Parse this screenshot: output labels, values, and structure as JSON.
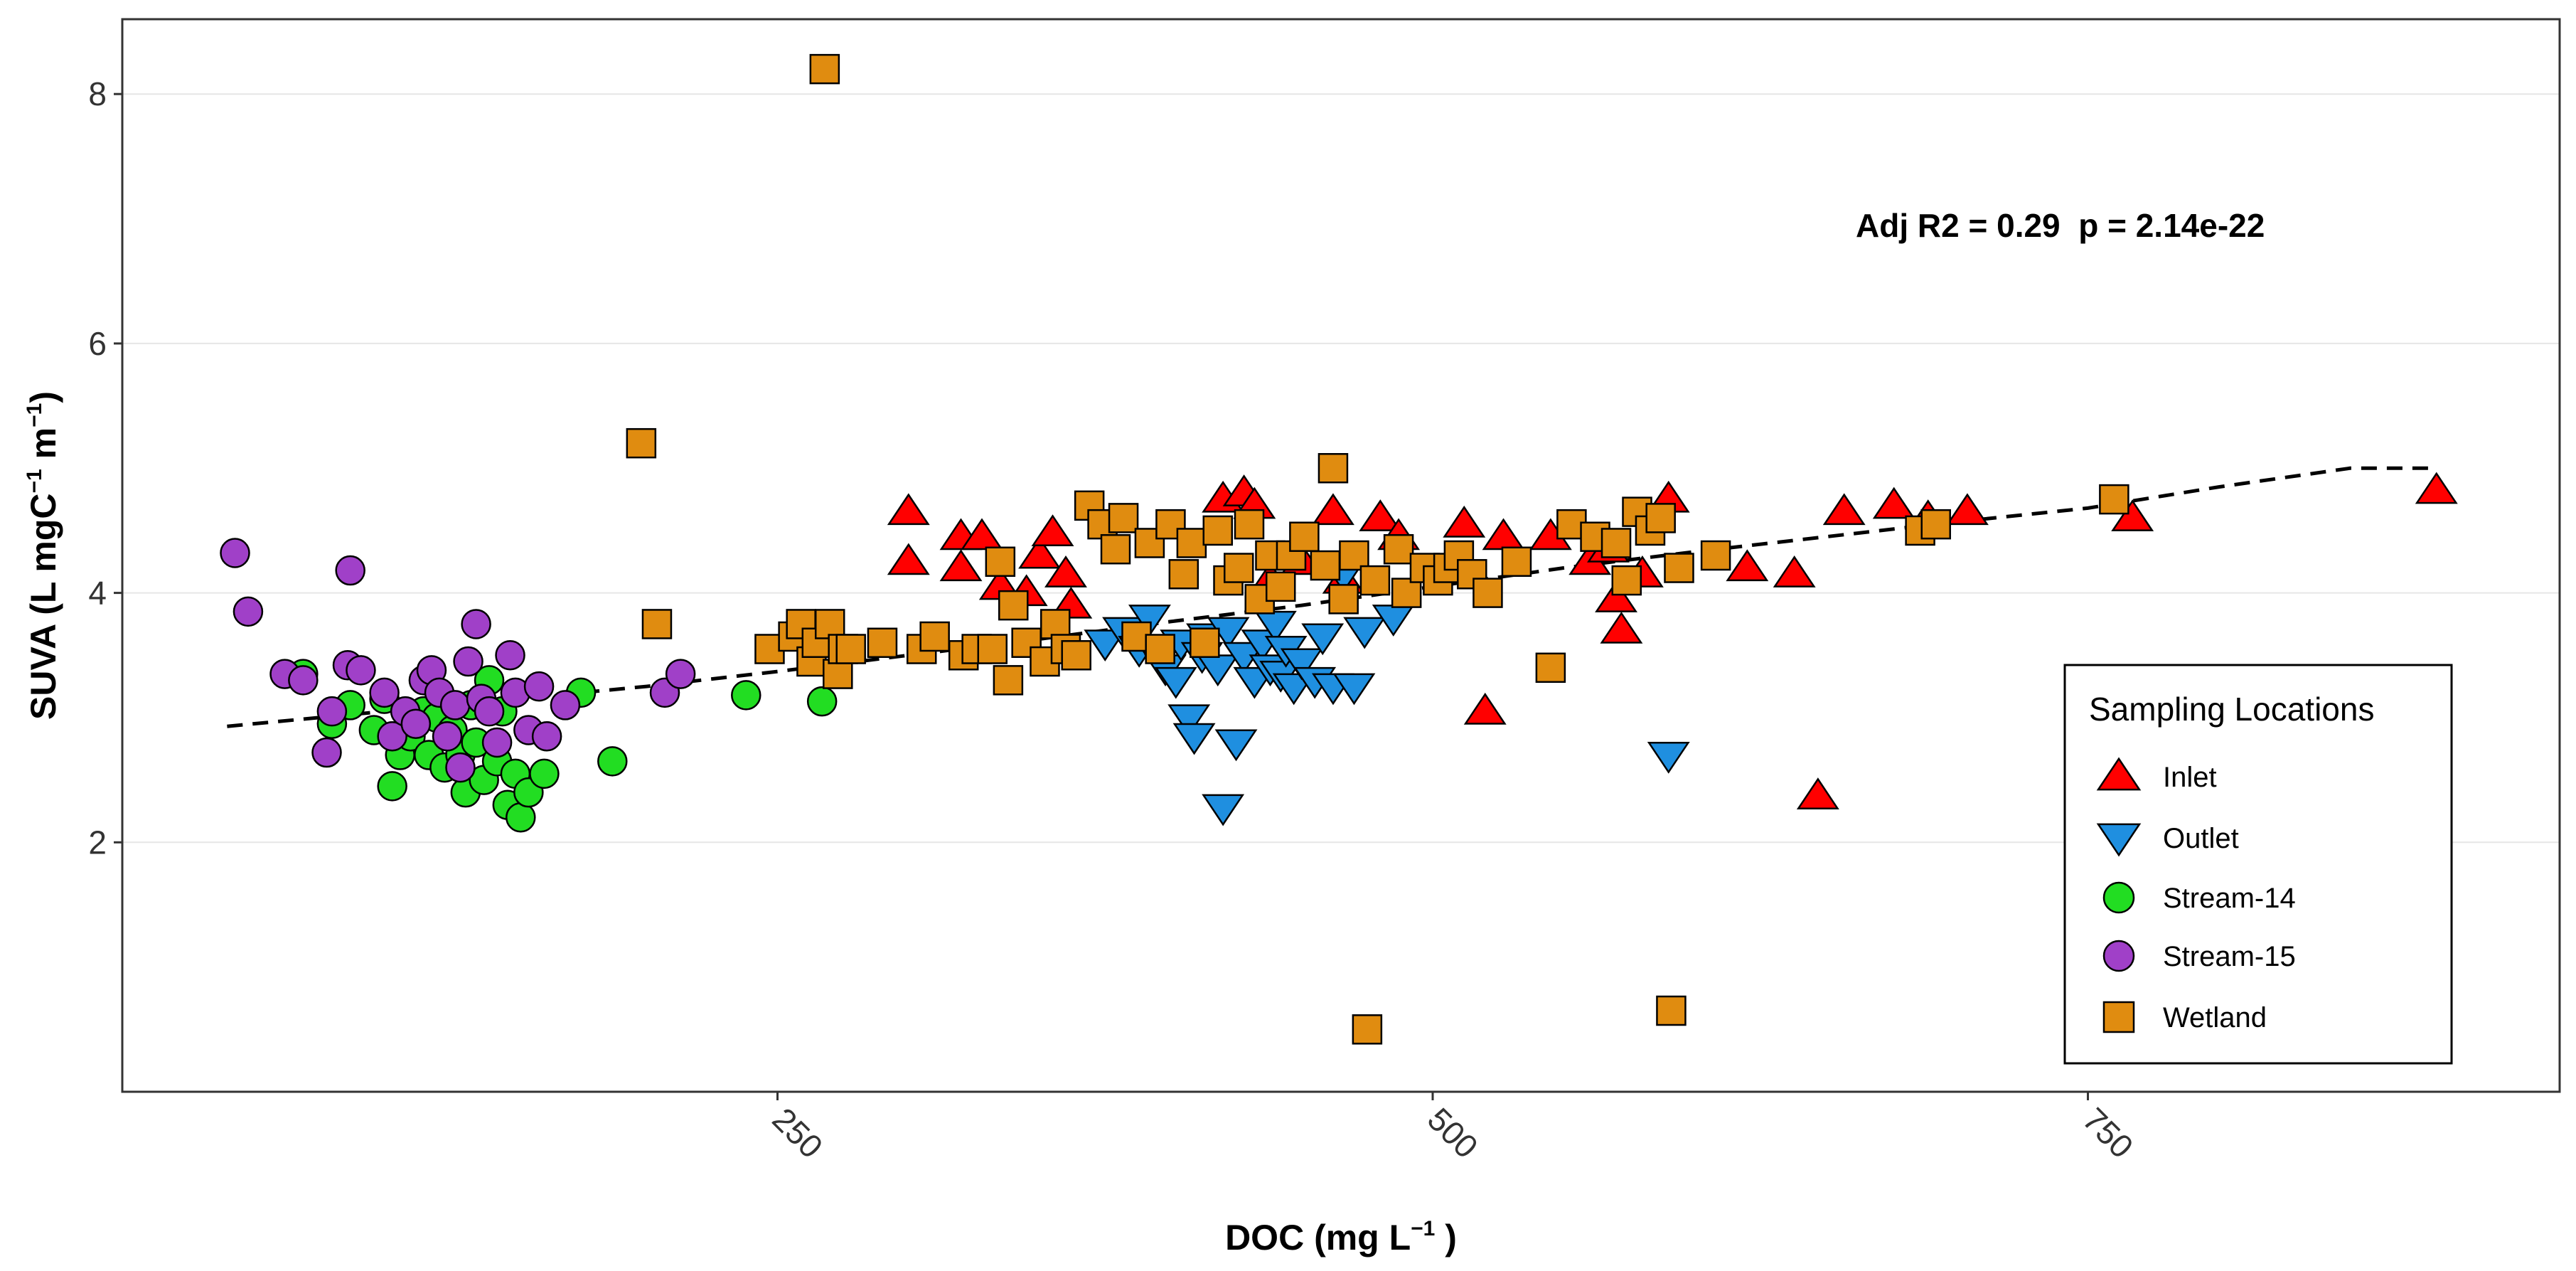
{
  "chart_data": {
    "type": "scatter",
    "xlabel": "DOC (mg L",
    "xlabel_superscript": "−1",
    "xlabel_suffix": " )",
    "ylabel": "SUVA (L mgC",
    "ylabel_sup1": "−1",
    "ylabel_mid": " m",
    "ylabel_sup2": "−1",
    "ylabel_suffix": ")",
    "xlim": [
      0,
      930
    ],
    "ylim": [
      0,
      8.6
    ],
    "x_ticks": [
      250,
      500,
      750
    ],
    "y_ticks": [
      2,
      4,
      6,
      8
    ],
    "x_tick_labels": [
      "250",
      "500",
      "750"
    ],
    "y_tick_labels": [
      "2",
      "4",
      "6",
      "8"
    ],
    "annotation": "Adj R2 = 0.29  p = 2.14e-22",
    "legend": {
      "title": "Sampling Locations",
      "position": "bottom-right",
      "entries": [
        "Inlet",
        "Outlet",
        "Stream-14",
        "Stream-15",
        "Wetland"
      ]
    },
    "trend_line": {
      "style": "dashed",
      "color": "#000000",
      "x": [
        40,
        100,
        150,
        200,
        250,
        300,
        350,
        400,
        450,
        500,
        550,
        600,
        650,
        700,
        750,
        800,
        850,
        880
      ],
      "y": [
        2.93,
        3.05,
        3.15,
        3.25,
        3.37,
        3.5,
        3.63,
        3.77,
        3.9,
        4.05,
        4.2,
        4.33,
        4.45,
        4.57,
        4.68,
        4.85,
        5.0,
        5.0
      ]
    },
    "series": [
      {
        "name": "Inlet",
        "shape": "triangle-up",
        "color": "#ff0000",
        "points": [
          [
            300,
            4.65
          ],
          [
            300,
            4.25
          ],
          [
            320,
            4.2
          ],
          [
            320,
            4.45
          ],
          [
            328,
            4.45
          ],
          [
            335,
            4.05
          ],
          [
            345,
            4.0
          ],
          [
            350,
            4.3
          ],
          [
            355,
            4.48
          ],
          [
            360,
            4.15
          ],
          [
            362,
            3.9
          ],
          [
            420,
            4.75
          ],
          [
            428,
            4.8
          ],
          [
            432,
            4.7
          ],
          [
            438,
            4.1
          ],
          [
            450,
            4.25
          ],
          [
            462,
            4.65
          ],
          [
            466,
            4.1
          ],
          [
            480,
            4.6
          ],
          [
            487,
            4.45
          ],
          [
            512,
            4.55
          ],
          [
            520,
            3.05
          ],
          [
            527,
            4.45
          ],
          [
            545,
            4.45
          ],
          [
            560,
            4.25
          ],
          [
            567,
            4.35
          ],
          [
            570,
            3.95
          ],
          [
            572,
            3.7
          ],
          [
            580,
            4.15
          ],
          [
            590,
            4.75
          ],
          [
            620,
            4.2
          ],
          [
            638,
            4.15
          ],
          [
            647,
            2.37
          ],
          [
            657,
            4.65
          ],
          [
            676,
            4.7
          ],
          [
            689,
            4.6
          ],
          [
            704,
            4.65
          ],
          [
            767,
            4.6
          ],
          [
            883,
            4.82
          ]
        ]
      },
      {
        "name": "Outlet",
        "shape": "triangle-down",
        "color": "#1f8fe0",
        "points": [
          [
            375,
            3.6
          ],
          [
            382,
            3.7
          ],
          [
            388,
            3.55
          ],
          [
            392,
            3.8
          ],
          [
            395,
            3.5
          ],
          [
            398,
            3.4
          ],
          [
            402,
            3.3
          ],
          [
            404,
            3.6
          ],
          [
            407,
            3.0
          ],
          [
            409,
            2.85
          ],
          [
            412,
            3.5
          ],
          [
            414,
            3.65
          ],
          [
            418,
            3.4
          ],
          [
            420,
            2.28
          ],
          [
            422,
            3.7
          ],
          [
            425,
            2.8
          ],
          [
            428,
            3.5
          ],
          [
            432,
            3.3
          ],
          [
            435,
            3.6
          ],
          [
            438,
            3.4
          ],
          [
            440,
            3.75
          ],
          [
            442,
            3.35
          ],
          [
            444,
            3.55
          ],
          [
            447,
            3.25
          ],
          [
            450,
            3.45
          ],
          [
            455,
            3.3
          ],
          [
            458,
            3.65
          ],
          [
            462,
            3.25
          ],
          [
            466,
            4.15
          ],
          [
            470,
            3.25
          ],
          [
            474,
            3.7
          ],
          [
            485,
            3.8
          ],
          [
            590,
            2.7
          ]
        ]
      },
      {
        "name": "Stream-14",
        "shape": "circle",
        "color": "#22dd22",
        "points": [
          [
            69,
            3.35
          ],
          [
            80,
            2.95
          ],
          [
            87,
            3.1
          ],
          [
            96,
            2.9
          ],
          [
            100,
            3.15
          ],
          [
            103,
            2.45
          ],
          [
            106,
            2.7
          ],
          [
            110,
            2.85
          ],
          [
            115,
            3.05
          ],
          [
            117,
            2.7
          ],
          [
            120,
            3.0
          ],
          [
            123,
            2.6
          ],
          [
            126,
            2.9
          ],
          [
            129,
            2.7
          ],
          [
            131,
            2.4
          ],
          [
            133,
            3.1
          ],
          [
            135,
            2.8
          ],
          [
            138,
            2.5
          ],
          [
            140,
            3.3
          ],
          [
            143,
            2.65
          ],
          [
            145,
            3.05
          ],
          [
            147,
            2.3
          ],
          [
            150,
            2.55
          ],
          [
            152,
            2.2
          ],
          [
            155,
            2.4
          ],
          [
            161,
            2.55
          ],
          [
            175,
            3.2
          ],
          [
            187,
            2.65
          ],
          [
            238,
            3.18
          ],
          [
            267,
            3.13
          ]
        ]
      },
      {
        "name": "Stream-15",
        "shape": "circle",
        "color": "#a040c8",
        "points": [
          [
            43,
            4.32
          ],
          [
            48,
            3.85
          ],
          [
            62,
            3.35
          ],
          [
            69,
            3.3
          ],
          [
            78,
            2.72
          ],
          [
            80,
            3.05
          ],
          [
            86,
            3.42
          ],
          [
            87,
            4.18
          ],
          [
            91,
            3.38
          ],
          [
            100,
            3.2
          ],
          [
            103,
            2.85
          ],
          [
            108,
            3.05
          ],
          [
            112,
            2.95
          ],
          [
            115,
            3.3
          ],
          [
            118,
            3.38
          ],
          [
            121,
            3.2
          ],
          [
            124,
            2.85
          ],
          [
            127,
            3.1
          ],
          [
            129,
            2.6
          ],
          [
            132,
            3.45
          ],
          [
            135,
            3.75
          ],
          [
            137,
            3.15
          ],
          [
            140,
            3.05
          ],
          [
            143,
            2.8
          ],
          [
            148,
            3.5
          ],
          [
            150,
            3.2
          ],
          [
            155,
            2.9
          ],
          [
            159,
            3.25
          ],
          [
            162,
            2.85
          ],
          [
            169,
            3.1
          ],
          [
            207,
            3.2
          ],
          [
            213,
            3.35
          ]
        ]
      },
      {
        "name": "Wetland",
        "shape": "square",
        "color": "#e08c10",
        "points": [
          [
            198,
            5.2
          ],
          [
            204,
            3.75
          ],
          [
            247,
            3.55
          ],
          [
            256,
            3.65
          ],
          [
            259,
            3.75
          ],
          [
            263,
            3.45
          ],
          [
            265,
            3.6
          ],
          [
            268,
            8.2
          ],
          [
            270,
            3.75
          ],
          [
            273,
            3.35
          ],
          [
            275,
            3.55
          ],
          [
            278,
            3.55
          ],
          [
            290,
            3.6
          ],
          [
            305,
            3.55
          ],
          [
            310,
            3.65
          ],
          [
            321,
            3.5
          ],
          [
            326,
            3.55
          ],
          [
            332,
            3.55
          ],
          [
            335,
            4.25
          ],
          [
            338,
            3.3
          ],
          [
            340,
            3.9
          ],
          [
            345,
            3.6
          ],
          [
            352,
            3.45
          ],
          [
            356,
            3.75
          ],
          [
            360,
            3.55
          ],
          [
            364,
            3.5
          ],
          [
            369,
            4.7
          ],
          [
            374,
            4.55
          ],
          [
            379,
            4.35
          ],
          [
            382,
            4.6
          ],
          [
            387,
            3.65
          ],
          [
            392,
            4.4
          ],
          [
            396,
            3.55
          ],
          [
            400,
            4.55
          ],
          [
            405,
            4.15
          ],
          [
            408,
            4.4
          ],
          [
            413,
            3.6
          ],
          [
            418,
            4.5
          ],
          [
            422,
            4.1
          ],
          [
            426,
            4.2
          ],
          [
            430,
            4.55
          ],
          [
            434,
            3.95
          ],
          [
            438,
            4.3
          ],
          [
            442,
            4.05
          ],
          [
            446,
            4.3
          ],
          [
            451,
            4.45
          ],
          [
            459,
            4.22
          ],
          [
            462,
            5.0
          ],
          [
            466,
            3.95
          ],
          [
            470,
            4.3
          ],
          [
            475,
            0.5
          ],
          [
            478,
            4.1
          ],
          [
            487,
            4.35
          ],
          [
            490,
            4.0
          ],
          [
            497,
            4.2
          ],
          [
            502,
            4.1
          ],
          [
            506,
            4.2
          ],
          [
            510,
            4.3
          ],
          [
            515,
            4.15
          ],
          [
            521,
            4.0
          ],
          [
            532,
            4.25
          ],
          [
            545,
            3.4
          ],
          [
            553,
            4.55
          ],
          [
            562,
            4.45
          ],
          [
            570,
            4.4
          ],
          [
            574,
            4.1
          ],
          [
            578,
            4.65
          ],
          [
            583,
            4.5
          ],
          [
            587,
            4.6
          ],
          [
            591,
            0.65
          ],
          [
            594,
            4.2
          ],
          [
            608,
            4.3
          ],
          [
            686,
            4.5
          ],
          [
            692,
            4.55
          ],
          [
            760,
            4.75
          ]
        ]
      }
    ]
  }
}
